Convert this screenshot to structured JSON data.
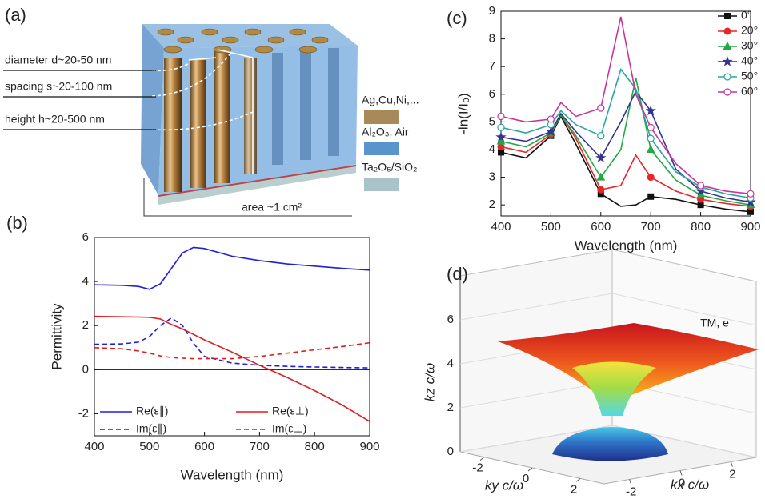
{
  "illustration": {
    "panel": "(a)",
    "dimensions": [
      "diameter d~20-50 nm",
      "spacing s~20-100 nm",
      "height h~20-500 nm"
    ],
    "materials": [
      "Ag,Cu,Ni,...",
      "Al₂O₃, Air",
      "Ta₂O₅/SiO₂"
    ],
    "area": "area ~1 cm²"
  },
  "chart_data": [
    {
      "type": "line",
      "panel": "(b)",
      "xlabel": "Wavelength (nm)",
      "ylabel": "Permittivity",
      "x": [
        400,
        450,
        480,
        500,
        520,
        540,
        560,
        580,
        600,
        650,
        700,
        750,
        800,
        850,
        900
      ],
      "xlim": [
        400,
        900
      ],
      "xticks": [
        400,
        500,
        600,
        700,
        800,
        900
      ],
      "ylim": [
        -3,
        6
      ],
      "yticks": [
        -2,
        0,
        2,
        4,
        6
      ],
      "series": [
        {
          "name": "Re(ε∥)",
          "color": "#1f1fd6",
          "dash": false,
          "values": [
            3.85,
            3.83,
            3.78,
            3.65,
            3.9,
            4.6,
            5.3,
            5.55,
            5.5,
            5.15,
            4.95,
            4.8,
            4.7,
            4.6,
            4.52
          ]
        },
        {
          "name": "Re(ε⊥)",
          "color": "#e41a1c",
          "dash": false,
          "values": [
            2.42,
            2.4,
            2.39,
            2.38,
            2.3,
            2.05,
            1.85,
            1.6,
            1.35,
            0.8,
            0.2,
            -0.35,
            -0.95,
            -1.6,
            -2.35
          ]
        },
        {
          "name": "Im(ε∥)",
          "color": "#1f1fd6",
          "dash": true,
          "values": [
            1.15,
            1.17,
            1.25,
            1.5,
            2.0,
            2.35,
            2.0,
            1.2,
            0.6,
            0.3,
            0.2,
            0.15,
            0.12,
            0.1,
            0.08
          ]
        },
        {
          "name": "Im(ε⊥)",
          "color": "#e41a1c",
          "dash": true,
          "values": [
            1.0,
            0.95,
            0.85,
            0.75,
            0.62,
            0.55,
            0.52,
            0.5,
            0.5,
            0.5,
            0.6,
            0.75,
            0.9,
            1.05,
            1.22
          ]
        }
      ]
    },
    {
      "type": "line",
      "panel": "(c)",
      "xlabel": "Wavelength (nm)",
      "ylabel": "-ln(I/I₀)",
      "x": [
        400,
        450,
        500,
        520,
        550,
        600,
        640,
        670,
        700,
        750,
        800,
        850,
        900
      ],
      "xlim": [
        400,
        900
      ],
      "xticks": [
        400,
        500,
        600,
        700,
        800,
        900
      ],
      "ylim": [
        1.6,
        9
      ],
      "yticks": [
        2,
        3,
        4,
        5,
        6,
        7,
        8,
        9
      ],
      "series": [
        {
          "name": "0°",
          "color": "#111111",
          "marker": "square",
          "values": [
            3.9,
            3.7,
            4.5,
            5.2,
            4.2,
            2.4,
            1.95,
            2.0,
            2.3,
            2.2,
            2.0,
            1.85,
            1.75
          ]
        },
        {
          "name": "20°",
          "color": "#e8262a",
          "marker": "circle",
          "values": [
            4.1,
            3.9,
            4.55,
            5.25,
            4.4,
            2.55,
            2.7,
            3.8,
            3.0,
            2.5,
            2.2,
            2.05,
            1.95
          ]
        },
        {
          "name": "30°",
          "color": "#22a845",
          "marker": "triangle",
          "values": [
            4.3,
            4.1,
            4.6,
            5.25,
            4.5,
            3.0,
            4.0,
            6.6,
            4.0,
            2.9,
            2.35,
            2.15,
            2.0
          ]
        },
        {
          "name": "40°",
          "color": "#34348f",
          "marker": "star",
          "values": [
            4.45,
            4.3,
            4.65,
            5.3,
            4.65,
            3.7,
            5.0,
            6.1,
            5.4,
            3.3,
            2.5,
            2.25,
            2.1
          ]
        },
        {
          "name": "50°",
          "color": "#2aa59a",
          "marker": "open-circle",
          "values": [
            4.8,
            4.6,
            4.9,
            5.4,
            4.9,
            4.5,
            6.9,
            6.2,
            4.4,
            3.2,
            2.65,
            2.4,
            2.25
          ]
        },
        {
          "name": "60°",
          "color": "#c9349c",
          "marker": "open-circle",
          "values": [
            5.2,
            5.0,
            5.1,
            5.7,
            5.2,
            5.5,
            8.8,
            6.0,
            4.8,
            3.5,
            2.7,
            2.5,
            2.4
          ]
        }
      ]
    },
    {
      "type": "surface",
      "panel": "(d)",
      "annotation": "TM, e",
      "xlabel": "kx c/ω",
      "ylabel": "ky c/ω",
      "zlabel": "kz c/ω",
      "xlim": [
        -3,
        3
      ],
      "ylim": [
        -3,
        3
      ],
      "zlim": [
        0,
        8
      ],
      "xticks": [
        -2,
        0,
        2
      ],
      "yticks": [
        -2,
        0,
        2
      ],
      "zticks": [
        0,
        2,
        4,
        6
      ]
    }
  ]
}
